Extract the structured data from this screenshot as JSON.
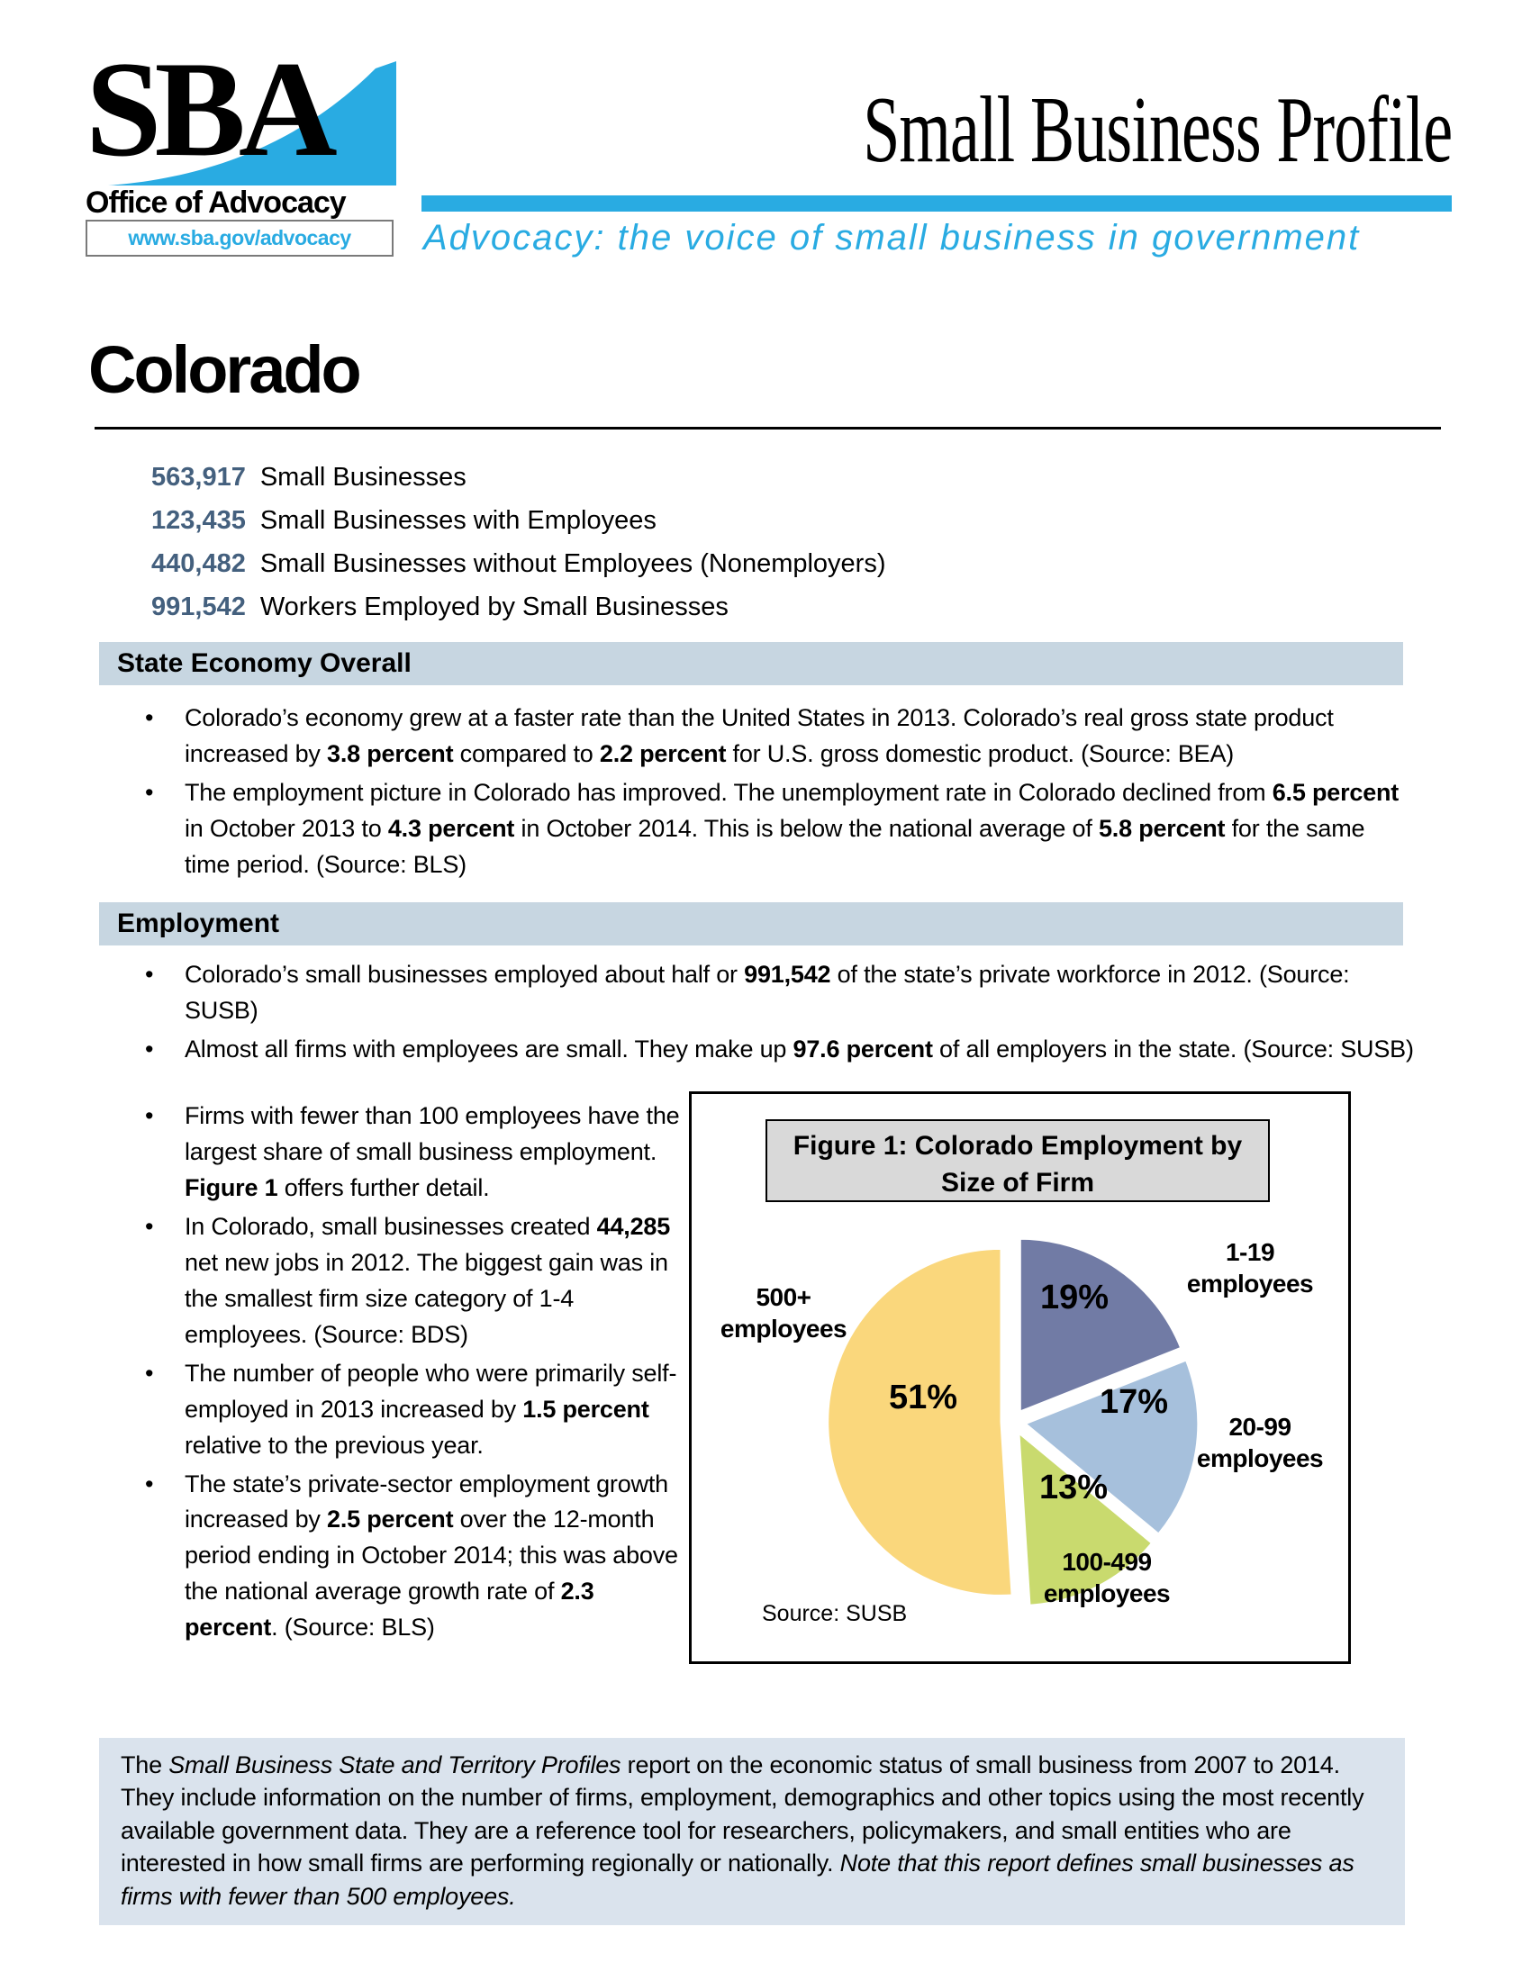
{
  "header": {
    "logo_text": "SBA",
    "logo_subtitle": "Office of Advocacy",
    "logo_url": "www.sba.gov/advocacy",
    "doc_title": "Small Business Profile",
    "tagline": "Advocacy: the voice of small business in government",
    "accent_color": "#29ABE2"
  },
  "state": {
    "name": "Colorado"
  },
  "stats": [
    {
      "value": "563,917",
      "label": "Small Businesses"
    },
    {
      "value": "123,435",
      "label": "Small Businesses with Employees"
    },
    {
      "value": "440,482",
      "label": "Small Businesses without Employees (Nonemployers)"
    },
    {
      "value": "991,542",
      "label": "Workers Employed by Small Businesses"
    }
  ],
  "stat_value_color": "#44607E",
  "section_bar_color": "#C7D6E1",
  "sections": {
    "economy": {
      "heading": "State Economy Overall",
      "bullets": [
        [
          {
            "t": "Colorado’s economy grew at a faster rate than the United States in 2013. Colorado’s real gross state product increased by "
          },
          {
            "t": "3.8 percent",
            "b": true
          },
          {
            "t": " compared to "
          },
          {
            "t": "2.2 percent",
            "b": true
          },
          {
            "t": " for U.S. gross domestic product. (Source: BEA)"
          }
        ],
        [
          {
            "t": "The employment picture in Colorado has improved. The unemployment rate in Colorado declined from "
          },
          {
            "t": "6.5 percent",
            "b": true
          },
          {
            "t": " in October 2013 to "
          },
          {
            "t": "4.3 percent",
            "b": true
          },
          {
            "t": " in October 2014. This is below the national average of "
          },
          {
            "t": "5.8 percent",
            "b": true
          },
          {
            "t": " for the same time period. (Source: BLS)"
          }
        ]
      ]
    },
    "employment": {
      "heading": "Employment",
      "bullets_full": [
        [
          {
            "t": "Colorado’s small businesses employed about half or "
          },
          {
            "t": "991,542",
            "b": true
          },
          {
            "t": " of the state’s private workforce in 2012. (Source: SUSB)"
          }
        ],
        [
          {
            "t": "Almost all firms with employees are small. They make up "
          },
          {
            "t": "97.6 percent",
            "b": true
          },
          {
            "t": " of all employers in the state. (Source: SUSB)"
          }
        ]
      ],
      "bullets_left": [
        [
          {
            "t": "Firms with fewer than 100 employees have the largest share of small business employment. "
          },
          {
            "t": "Figure 1",
            "b": true
          },
          {
            "t": " offers further detail."
          }
        ],
        [
          {
            "t": "In Colorado, small businesses created "
          },
          {
            "t": "44,285",
            "b": true
          },
          {
            "t": " net new jobs in 2012. The biggest gain was in the smallest firm size category of 1-4 employees. (Source: BDS)"
          }
        ],
        [
          {
            "t": "The number of people who were primarily self-employed in 2013 increased by "
          },
          {
            "t": "1.5 percent",
            "b": true
          },
          {
            "t": " relative to the previous year."
          }
        ],
        [
          {
            "t": "The state’s private-sector employment growth increased by "
          },
          {
            "t": "2.5 percent",
            "b": true
          },
          {
            "t": " over the 12-month period ending in October 2014; this was above the national average growth rate of "
          },
          {
            "t": "2.3 percent",
            "b": true
          },
          {
            "t": ". (Source: BLS)"
          }
        ]
      ]
    }
  },
  "chart_data": {
    "type": "pie",
    "title": "Figure 1: Colorado Employment by Size of Firm",
    "categories": [
      "1-19 employees",
      "20-99 employees",
      "100-499 employees",
      "500+ employees"
    ],
    "values": [
      19,
      17,
      13,
      51
    ],
    "data_labels": [
      "19%",
      "17%",
      "13%",
      "51%"
    ],
    "colors": [
      "#717BA5",
      "#A6C0DC",
      "#C9DA6E",
      "#FAD77C"
    ],
    "source": "Source: SUSB",
    "legend_position": "outside-callouts",
    "start_angle": "top",
    "direction": "clockwise",
    "exploded": true
  },
  "footer": {
    "segments": [
      {
        "t": "The "
      },
      {
        "t": "Small Business State and Territory Profiles",
        "i": true
      },
      {
        "t": " report on the economic status of small business from 2007 to 2014. They include information on the number of firms, employment, demographics and other topics using the most recently available government data. They are a reference tool for researchers, policymakers, and small entities who are interested in how small firms are performing regionally or nationally. "
      },
      {
        "t": "Note that this report defines small businesses as firms with fewer than 500 employees.",
        "i": true
      }
    ],
    "background_color": "#DAE3ED"
  }
}
